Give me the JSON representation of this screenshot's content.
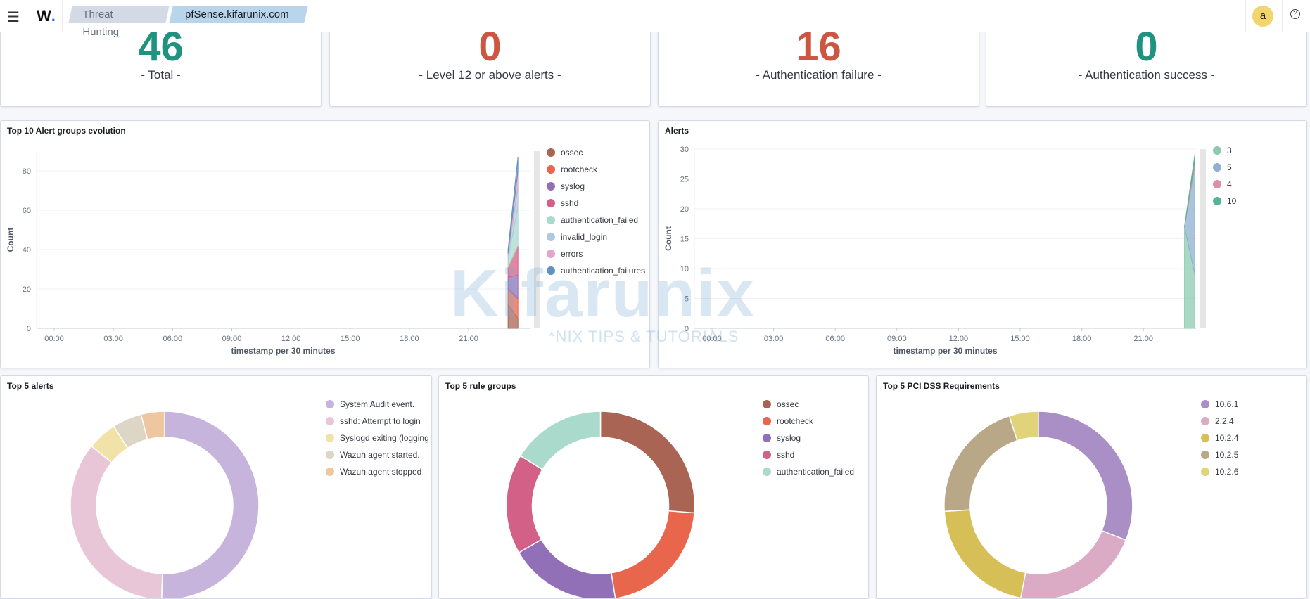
{
  "topbar": {
    "menu_icon": "hamburger-icon",
    "logo": "W",
    "breadcrumbs": [
      "Threat Hunting",
      "pfSense.kifarunix.com"
    ],
    "avatar": "a",
    "help_icon": "question-circle-icon"
  },
  "metrics": [
    {
      "value": "46",
      "label": "- Total -",
      "color": "#209280"
    },
    {
      "value": "0",
      "label": "- Level 12 or above alerts -",
      "color": "#cc5642"
    },
    {
      "value": "16",
      "label": "- Authentication failure -",
      "color": "#cc5642"
    },
    {
      "value": "0",
      "label": "- Authentication success -",
      "color": "#209280"
    }
  ],
  "watermark": {
    "main": "Kifarunix",
    "sub": "*NIX TIPS & TUTORIALS"
  },
  "chart_data": [
    {
      "type": "area",
      "title": "Top 10 Alert groups evolution",
      "xlabel": "timestamp per 30 minutes",
      "ylabel": "Count",
      "stacked": true,
      "x_ticks": [
        "00:00",
        "03:00",
        "06:00",
        "09:00",
        "12:00",
        "15:00",
        "18:00",
        "21:00"
      ],
      "y_ticks": [
        0,
        20,
        40,
        60,
        80
      ],
      "ylim": [
        0,
        90
      ],
      "x": [
        "23:00",
        "23:30"
      ],
      "legend": "right",
      "series": [
        {
          "name": "ossec",
          "values": [
            12,
            5
          ],
          "color": "#a96453"
        },
        {
          "name": "rootcheck",
          "values": [
            8,
            10
          ],
          "color": "#e7664c"
        },
        {
          "name": "syslog",
          "values": [
            6,
            12
          ],
          "color": "#9170b8"
        },
        {
          "name": "sshd",
          "values": [
            5,
            15
          ],
          "color": "#d36086"
        },
        {
          "name": "authentication_failed",
          "values": [
            4,
            20
          ],
          "color": "#a9dacc"
        },
        {
          "name": "invalid_login",
          "values": [
            2,
            10
          ],
          "color": "#b0c9e0"
        },
        {
          "name": "errors",
          "values": [
            1,
            8
          ],
          "color": "#e4a6c7"
        },
        {
          "name": "authentication_failures",
          "values": [
            2,
            7
          ],
          "color": "#6092c0"
        }
      ]
    },
    {
      "type": "area",
      "title": "Alerts",
      "xlabel": "timestamp per 30 minutes",
      "ylabel": "Count",
      "stacked": true,
      "x_ticks": [
        "00:00",
        "03:00",
        "06:00",
        "09:00",
        "12:00",
        "15:00",
        "18:00",
        "21:00"
      ],
      "y_ticks": [
        0,
        5,
        10,
        15,
        20,
        25,
        30
      ],
      "ylim": [
        0,
        30
      ],
      "x": [
        "23:00",
        "23:30"
      ],
      "legend": "right",
      "series": [
        {
          "name": "3",
          "values": [
            17,
            9
          ],
          "color": "#8ccbb0"
        },
        {
          "name": "5",
          "values": [
            0,
            18
          ],
          "color": "#8fb0cf"
        },
        {
          "name": "4",
          "values": [
            0,
            1
          ],
          "color": "#e08ea8"
        },
        {
          "name": "10",
          "values": [
            0,
            1
          ],
          "color": "#54b399"
        }
      ]
    },
    {
      "type": "pie",
      "title": "Top 5 alerts",
      "donut": true,
      "legend": "right",
      "slices": [
        {
          "name": "System Audit event.",
          "value": 50,
          "color": "#c7b4dd"
        },
        {
          "name": "sshd: Attempt to login",
          "value": 35,
          "color": "#e8c6d8"
        },
        {
          "name": "Syslogd exiting (logging",
          "value": 5,
          "color": "#f1e3a7"
        },
        {
          "name": "Wazuh agent started.",
          "value": 5,
          "color": "#ddd5c5"
        },
        {
          "name": "Wazuh agent stopped",
          "value": 4,
          "color": "#eec6a0"
        }
      ]
    },
    {
      "type": "pie",
      "title": "Top 5 rule groups",
      "donut": true,
      "legend": "right",
      "slices": [
        {
          "name": "ossec",
          "value": 26,
          "color": "#a96453"
        },
        {
          "name": "rootcheck",
          "value": 21,
          "color": "#e7664c"
        },
        {
          "name": "syslog",
          "value": 19,
          "color": "#9170b8"
        },
        {
          "name": "sshd",
          "value": 17,
          "color": "#d36086"
        },
        {
          "name": "authentication_failed",
          "value": 16,
          "color": "#a9dacc"
        }
      ]
    },
    {
      "type": "pie",
      "title": "Top 5 PCI DSS Requirements",
      "donut": true,
      "legend": "right",
      "slices": [
        {
          "name": "10.6.1",
          "value": 31,
          "color": "#aa8fc7"
        },
        {
          "name": "2.2.4",
          "value": 22,
          "color": "#dbaac4"
        },
        {
          "name": "10.2.4",
          "value": 21,
          "color": "#d6bf57"
        },
        {
          "name": "10.2.5",
          "value": 21,
          "color": "#b9a888"
        },
        {
          "name": "10.2.6",
          "value": 5,
          "color": "#e0d37a"
        }
      ]
    }
  ]
}
